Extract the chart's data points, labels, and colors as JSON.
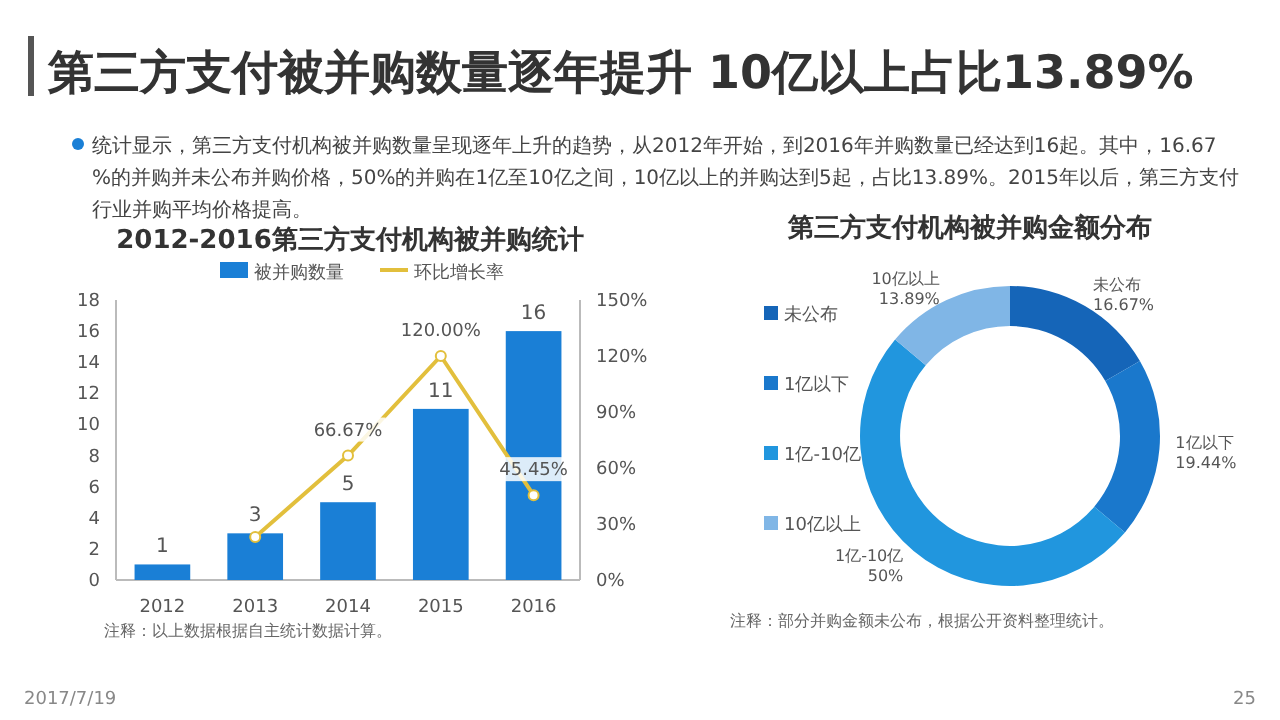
{
  "chart_data": [
    {
      "type": "other",
      "title": "第三方支付被并购数量逐年提升 10亿以上占比13.89%",
      "annotations": [
        "统计显示，第三方支付机构被并购数量呈现逐年上升的趋势，从2012年开始，到2016年并购数量已经达到16起。其中，16.67%的并购并未公布并购价格，50%的并购在1亿至10亿之间，10亿以上的并购达到5起，占比13.89%。2015年以后，第三方支付行业并购平均价格提高。",
        "2017/7/19",
        "25"
      ]
    },
    {
      "type": "bar",
      "title": "2012-2016第三方支付机构被并购统计",
      "categories": [
        "2012",
        "2013",
        "2014",
        "2015",
        "2016"
      ],
      "series": [
        {
          "name": "被并购数量",
          "color": "#1a7fd6",
          "values": [
            1,
            3,
            5,
            11,
            16
          ],
          "value_labels": [
            "1",
            "3",
            "5",
            "11",
            "16"
          ]
        },
        {
          "name": "环比增长率",
          "type": "line",
          "axis": "y2",
          "color": "#e2bf3c",
          "marker": "circle",
          "values": [
            null,
            23,
            66.67,
            120,
            45.45
          ],
          "value_labels": [
            null,
            null,
            "66.67%",
            "120.00%",
            "45.45%"
          ]
        }
      ],
      "ylim": [
        0,
        18
      ],
      "yticks": [
        0,
        2,
        4,
        6,
        8,
        10,
        12,
        14,
        16,
        18
      ],
      "y2lim": [
        0,
        150
      ],
      "y2ticks": [
        {
          "value": 0,
          "label": "0%"
        },
        {
          "value": 30,
          "label": "30%"
        },
        {
          "value": 60,
          "label": "60%"
        },
        {
          "value": 90,
          "label": "90%"
        },
        {
          "value": 120,
          "label": "120%"
        },
        {
          "value": 150,
          "label": "150%"
        }
      ],
      "legend": "top",
      "annotations": [
        "注释：以上数据根据自主统计数据计算。"
      ]
    },
    {
      "type": "donut",
      "title": "第三方支付机构被并购金额分布",
      "categories": [
        "未公布",
        "1亿以下",
        "1亿-10亿",
        "10亿以上"
      ],
      "values": [
        16.67,
        19.44,
        50,
        13.89
      ],
      "colors": [
        "#1565b8",
        "#1a78cc",
        "#2196de",
        "#80b6e6"
      ],
      "value_labels": [
        "16.67%",
        "19.44%",
        "50%",
        "13.89%"
      ],
      "legend": "left",
      "annotations": [
        "注释：部分并购金额未公布，根据公开资料整理统计。"
      ]
    }
  ]
}
